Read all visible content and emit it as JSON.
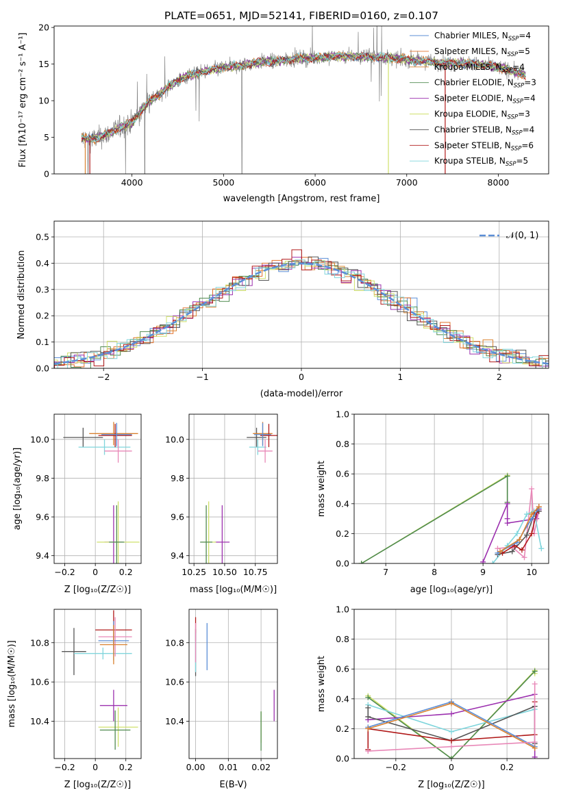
{
  "colors": {
    "Chabrier MILES": "#5b8ed6",
    "Salpeter MILES": "#e2702a",
    "Kroupa MILES": "#d9812f",
    "Chabrier ELODIE": "#4f8a4f",
    "Salpeter ELODIE": "#9b2fae",
    "Kroupa ELODIE": "#cfe06a",
    "Chabrier STELIB": "#555555",
    "Salpeter STELIB": "#b01818",
    "Kroupa STELIB": "#7fd5dc",
    "pink": "#e887b7",
    "observed": "#808080",
    "normal": "#5b8ed6"
  },
  "chart_data": [
    {
      "id": "spectrum",
      "type": "line",
      "title": "PLATE=0651, MJD=52141, FIBERID=0160, z=0.107",
      "xlabel": "wavelength [Angstrom, rest frame]",
      "ylabel": "Flux [fλ10⁻¹⁷ erg cm⁻² s⁻¹ A⁻¹]",
      "xlim": [
        3150,
        8550
      ],
      "ylim": [
        0,
        20.2
      ],
      "xticks": [
        4000,
        5000,
        6000,
        7000,
        8000
      ],
      "yticks": [
        0,
        5,
        10,
        15,
        20
      ],
      "continuum": {
        "x": [
          3450,
          3600,
          3750,
          3900,
          4000,
          4100,
          4200,
          4300,
          4400,
          4600,
          4800,
          5000,
          5200,
          5400,
          5600,
          5800,
          6000,
          6200,
          6400,
          6600,
          6800,
          7000,
          7200,
          7400,
          7600,
          7800,
          8000,
          8300
        ],
        "y": [
          4.8,
          4.8,
          5.5,
          6.5,
          7.0,
          8.6,
          10.0,
          10.8,
          12.0,
          13.4,
          14.0,
          14.5,
          14.8,
          15.3,
          15.4,
          15.8,
          15.8,
          16.1,
          16.0,
          16.0,
          15.9,
          15.6,
          15.4,
          15.1,
          15.2,
          14.9,
          14.6,
          13.5
        ]
      },
      "legend": [
        "Chabrier MILES, N_SSP=4",
        "Salpeter MILES, N_SSP=5",
        "Kroupa MILES, N_SSP=4",
        "Chabrier ELODIE, N_SSP=3",
        "Salpeter ELODIE, N_SSP=4",
        "Kroupa ELODIE, N_SSP=3",
        "Chabrier STELIB, N_SSP=4",
        "Salpeter STELIB, N_SSP=6",
        "Kroupa STELIB, N_SSP=5"
      ],
      "legend_keys": [
        "Chabrier MILES",
        "Salpeter MILES",
        "Kroupa MILES",
        "Chabrier ELODIE",
        "Salpeter ELODIE",
        "Kroupa ELODIE",
        "Chabrier STELIB",
        "Salpeter STELIB",
        "Kroupa STELIB"
      ],
      "legend_position": "upper-right"
    },
    {
      "id": "residuals",
      "type": "histogram",
      "xlabel": "(data-model)/error",
      "ylabel": "Normed distribution",
      "xlim": [
        -2.5,
        2.5
      ],
      "ylim": [
        0,
        0.56
      ],
      "xticks": [
        -2,
        -1,
        0,
        1,
        2
      ],
      "yticks": [
        0.0,
        0.1,
        0.2,
        0.3,
        0.4,
        0.5
      ],
      "bin_width": 0.1,
      "legend": [
        "𝒩(0, 1)"
      ],
      "legend_position": "upper-right",
      "grid": true
    },
    {
      "id": "age-vs-Z",
      "type": "errorbar",
      "xlabel": "Z [log₁₀(Z/Z☉)]",
      "ylabel": "age  [log₁₀(age/yr)]",
      "xlim": [
        -0.27,
        0.3
      ],
      "ylim": [
        9.36,
        10.13
      ],
      "xticks": [
        -0.2,
        0.0,
        0.2
      ],
      "yticks": [
        9.4,
        9.6,
        9.8,
        10.0
      ],
      "points": [
        {
          "c": "Chabrier STELIB",
          "x": -0.08,
          "y": 10.01,
          "xe": 0.13,
          "ye": 0.05
        },
        {
          "c": "Kroupa STELIB",
          "x": 0.06,
          "y": 9.96,
          "xe": 0.17,
          "ye": 0.04
        },
        {
          "c": "pink",
          "x": 0.15,
          "y": 9.94,
          "xe": 0.09,
          "ye": 0.06
        },
        {
          "c": "Kroupa MILES",
          "x": 0.12,
          "y": 10.03,
          "xe": 0.16,
          "ye": 0.06
        },
        {
          "c": "Salpeter STELIB",
          "x": 0.13,
          "y": 10.02,
          "xe": 0.11,
          "ye": 0.06
        },
        {
          "c": "Chabrier MILES",
          "x": 0.14,
          "y": 10.025,
          "xe": 0.1,
          "ye": 0.06
        },
        {
          "c": "Salpeter ELODIE",
          "x": 0.12,
          "y": 9.47,
          "xe": 0.06,
          "ye": 0.19
        },
        {
          "c": "Kroupa ELODIE",
          "x": 0.15,
          "y": 9.47,
          "xe": 0.14,
          "ye": 0.21
        },
        {
          "c": "Chabrier ELODIE",
          "x": 0.14,
          "y": 9.47,
          "xe": 0.05,
          "ye": 0.19
        }
      ]
    },
    {
      "id": "age-vs-mass",
      "type": "errorbar",
      "xlabel": "mass [log₁₀(M/M☉)]",
      "xlim": [
        10.21,
        10.93
      ],
      "ylim": [
        9.36,
        10.13
      ],
      "xticks": [
        10.25,
        10.5,
        10.75
      ],
      "yticks": [
        9.4,
        9.6,
        9.8,
        10.0
      ],
      "points": [
        {
          "c": "Chabrier STELIB",
          "x": 10.76,
          "y": 10.01,
          "xe": 0.08,
          "ye": 0.05
        },
        {
          "c": "Kroupa STELIB",
          "x": 10.77,
          "y": 9.96,
          "xe": 0.07,
          "ye": 0.04
        },
        {
          "c": "pink",
          "x": 10.83,
          "y": 9.94,
          "xe": 0.06,
          "ye": 0.06
        },
        {
          "c": "Kroupa MILES",
          "x": 10.81,
          "y": 10.03,
          "xe": 0.08,
          "ye": 0.06
        },
        {
          "c": "Salpeter STELIB",
          "x": 10.86,
          "y": 10.02,
          "xe": 0.07,
          "ye": 0.06
        },
        {
          "c": "Chabrier MILES",
          "x": 10.81,
          "y": 10.025,
          "xe": 0.07,
          "ye": 0.06
        },
        {
          "c": "Salpeter ELODIE",
          "x": 10.48,
          "y": 9.47,
          "xe": 0.06,
          "ye": 0.19
        },
        {
          "c": "Kroupa ELODIE",
          "x": 10.37,
          "y": 9.47,
          "xe": 0.06,
          "ye": 0.21
        },
        {
          "c": "Chabrier ELODIE",
          "x": 10.35,
          "y": 9.47,
          "xe": 0.05,
          "ye": 0.19
        }
      ]
    },
    {
      "id": "massweight-vs-age",
      "type": "line",
      "xlabel": "age  [log₁₀(age/yr)]",
      "ylabel": "mass weight",
      "xlim": [
        6.35,
        10.35
      ],
      "ylim": [
        0,
        1.0
      ],
      "xticks": [
        7,
        8,
        9,
        10
      ],
      "yticks": [
        0.0,
        0.2,
        0.4,
        0.6,
        0.8,
        1.0
      ],
      "series": [
        {
          "c": "Kroupa ELODIE",
          "x": [
            6.5,
            9.5,
            9.5
          ],
          "y": [
            0.0,
            0.59,
            0.41
          ]
        },
        {
          "c": "Chabrier ELODIE",
          "x": [
            6.5,
            9.5,
            9.5
          ],
          "y": [
            0.0,
            0.585,
            0.41
          ]
        },
        {
          "c": "Salpeter ELODIE",
          "x": [
            9.0,
            9.5,
            9.5,
            9.5,
            10.1,
            10.15
          ],
          "y": [
            0.01,
            0.4,
            0.3,
            0.27,
            0.3,
            0.36
          ]
        },
        {
          "c": "pink",
          "x": [
            9.3,
            9.6,
            9.85,
            10.0,
            10.05,
            10.15
          ],
          "y": [
            0.1,
            0.11,
            0.04,
            0.5,
            0.2,
            0.35
          ]
        },
        {
          "c": "Kroupa STELIB",
          "x": [
            9.2,
            9.5,
            9.7,
            9.9,
            10.05,
            10.2
          ],
          "y": [
            0.0,
            0.12,
            0.2,
            0.33,
            0.35,
            0.1
          ]
        },
        {
          "c": "Chabrier STELIB",
          "x": [
            9.3,
            9.6,
            9.9,
            10.05,
            10.15
          ],
          "y": [
            0.06,
            0.08,
            0.19,
            0.33,
            0.35
          ]
        },
        {
          "c": "Salpeter STELIB",
          "x": [
            9.4,
            9.65,
            9.8,
            10.0,
            10.1,
            10.15
          ],
          "y": [
            0.07,
            0.12,
            0.09,
            0.2,
            0.34,
            0.38
          ]
        },
        {
          "c": "Chabrier MILES",
          "x": [
            9.3,
            9.7,
            10.0,
            10.15
          ],
          "y": [
            0.07,
            0.14,
            0.3,
            0.37
          ]
        },
        {
          "c": "Kroupa MILES",
          "x": [
            9.35,
            9.75,
            10.0,
            10.15
          ],
          "y": [
            0.08,
            0.16,
            0.33,
            0.38
          ]
        }
      ]
    },
    {
      "id": "mass-vs-Z",
      "type": "errorbar",
      "xlabel": "Z [log₁₀(Z/Z☉)]",
      "ylabel": "mass [log₁₀(M/M☉)]",
      "xlim": [
        -0.27,
        0.3
      ],
      "ylim": [
        10.21,
        10.97
      ],
      "xticks": [
        -0.2,
        0.0,
        0.2
      ],
      "yticks": [
        10.4,
        10.6,
        10.8
      ],
      "points": [
        {
          "c": "Chabrier STELIB",
          "x": -0.14,
          "y": 10.755,
          "xe": 0.08,
          "ye": 0.12
        },
        {
          "c": "Kroupa STELIB",
          "x": 0.05,
          "y": 10.745,
          "xe": 0.19,
          "ye": 0.03
        },
        {
          "c": "Salpeter STELIB",
          "x": 0.12,
          "y": 10.865,
          "xe": 0.12,
          "ye": 0.1
        },
        {
          "c": "pink",
          "x": 0.13,
          "y": 10.83,
          "xe": 0.11,
          "ye": 0.1
        },
        {
          "c": "Chabrier MILES",
          "x": 0.12,
          "y": 10.81,
          "xe": 0.1,
          "ye": 0.1
        },
        {
          "c": "Kroupa MILES",
          "x": 0.12,
          "y": 10.79,
          "xe": 0.09,
          "ye": 0.1
        },
        {
          "c": "Salpeter ELODIE",
          "x": 0.12,
          "y": 10.48,
          "xe": 0.09,
          "ye": 0.08
        },
        {
          "c": "Kroupa ELODIE",
          "x": 0.15,
          "y": 10.37,
          "xe": 0.13,
          "ye": 0.1
        },
        {
          "c": "Chabrier ELODIE",
          "x": 0.13,
          "y": 10.355,
          "xe": 0.1,
          "ye": 0.1
        }
      ]
    },
    {
      "id": "mass-vs-ebv",
      "type": "errorbar",
      "xlabel": "E(B-V)",
      "xlim": [
        -0.002,
        0.025
      ],
      "ylim": [
        10.21,
        10.97
      ],
      "xticks": [
        0.0,
        0.01,
        0.02
      ],
      "yticks": [
        10.4,
        10.6,
        10.8
      ],
      "points": [
        {
          "c": "Salpeter STELIB",
          "x": 0.0,
          "y": 10.87,
          "xe": 0,
          "ye": 0.06
        },
        {
          "c": "Chabrier STELIB",
          "x": 0.0,
          "y": 10.75,
          "xe": 0,
          "ye": 0.12
        },
        {
          "c": "Kroupa STELIB",
          "x": 0.0,
          "y": 10.75,
          "xe": 0,
          "ye": 0.1
        },
        {
          "c": "pink",
          "x": 0.0,
          "y": 10.8,
          "xe": 0,
          "ye": 0.1
        },
        {
          "c": "Chabrier MILES",
          "x": 0.0035,
          "y": 10.78,
          "xe": 0,
          "ye": 0.12
        },
        {
          "c": "Kroupa ELODIE",
          "x": 0.02,
          "y": 10.37,
          "xe": 0,
          "ye": 0.08
        },
        {
          "c": "Chabrier ELODIE",
          "x": 0.02,
          "y": 10.35,
          "xe": 0,
          "ye": 0.1
        },
        {
          "c": "Salpeter ELODIE",
          "x": 0.024,
          "y": 10.48,
          "xe": 0,
          "ye": 0.08
        }
      ]
    },
    {
      "id": "massweight-vs-Z",
      "type": "line",
      "xlabel": "Z [log₁₀(Z/Z☉)]",
      "ylabel": "mass weight",
      "xlim": [
        -0.35,
        0.35
      ],
      "ylim": [
        0,
        1.0
      ],
      "xticks": [
        -0.2,
        0.0,
        0.2
      ],
      "yticks": [
        0.0,
        0.2,
        0.4,
        0.6,
        0.8,
        1.0
      ],
      "series": [
        {
          "c": "Kroupa ELODIE",
          "x": [
            -0.3,
            0.0,
            0.3,
            0.3
          ],
          "y": [
            0.42,
            0.0,
            0.59,
            0.57
          ]
        },
        {
          "c": "Chabrier ELODIE",
          "x": [
            -0.3,
            0.0,
            0.3
          ],
          "y": [
            0.41,
            0.0,
            0.585
          ]
        },
        {
          "c": "Salpeter ELODIE",
          "x": [
            -0.3,
            0.0,
            0.3,
            0.3
          ],
          "y": [
            0.26,
            0.3,
            0.43,
            0.01
          ]
        },
        {
          "c": "Kroupa STELIB",
          "x": [
            -0.3,
            0.0,
            0.3,
            0.3
          ],
          "y": [
            0.36,
            0.18,
            0.33,
            0.11
          ]
        },
        {
          "c": "Chabrier STELIB",
          "x": [
            -0.3,
            -0.3,
            0.0,
            0.3,
            0.3
          ],
          "y": [
            0.34,
            0.28,
            0.12,
            0.35,
            0.1
          ]
        },
        {
          "c": "Salpeter STELIB",
          "x": [
            -0.3,
            -0.3,
            0.0,
            0.3,
            0.3
          ],
          "y": [
            0.06,
            0.2,
            0.12,
            0.16,
            0.38
          ]
        },
        {
          "c": "Chabrier MILES",
          "x": [
            -0.3,
            0.0,
            0.3
          ],
          "y": [
            0.21,
            0.38,
            0.08
          ]
        },
        {
          "c": "Kroupa MILES",
          "x": [
            -0.3,
            0.0,
            0.3
          ],
          "y": [
            0.2,
            0.37,
            0.07
          ]
        },
        {
          "c": "pink",
          "x": [
            -0.3,
            0.0,
            0.3,
            0.3
          ],
          "y": [
            0.05,
            0.08,
            0.11,
            0.5
          ]
        }
      ]
    }
  ]
}
